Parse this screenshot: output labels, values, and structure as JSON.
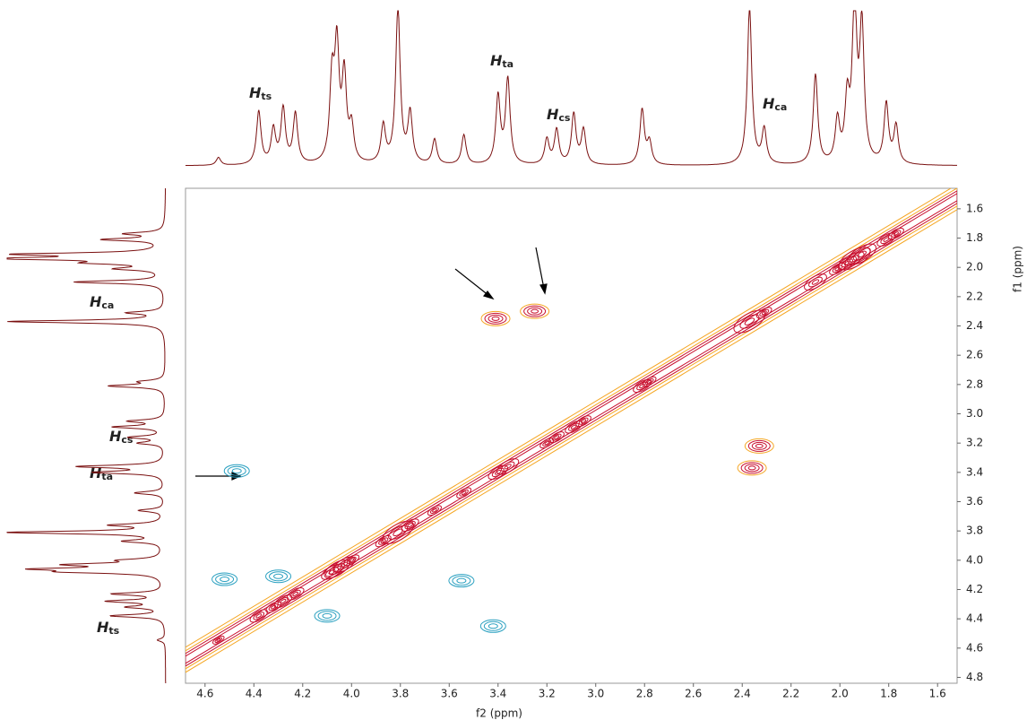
{
  "chart_data": {
    "type": "contour",
    "xlabel": "f2 (ppm)",
    "ylabel": "f1 (ppm)",
    "xlim": [
      4.68,
      1.52
    ],
    "ylim": [
      1.46,
      4.84
    ],
    "xticks": [
      4.6,
      4.4,
      4.2,
      {
        "value": 4,
        "label": "4.0"
      },
      3.8,
      3.6,
      3.4,
      3.2,
      {
        "value": 3,
        "label": "3.0"
      },
      2.8,
      2.6,
      2.4,
      2.2,
      {
        "value": 2,
        "label": "2.0"
      },
      1.8,
      1.6
    ],
    "yticks": [
      1.6,
      1.8,
      {
        "value": 2,
        "label": "2.0"
      },
      2.2,
      2.4,
      2.6,
      2.8,
      {
        "value": 3,
        "label": "3.0"
      },
      3.2,
      3.4,
      3.6,
      3.8,
      {
        "value": 4,
        "label": "4.0"
      },
      4.2,
      4.4,
      4.6,
      4.8
    ],
    "positive_color": "#c8102e",
    "outer_color": "#f5a623",
    "negative_color": "#2aa0c0",
    "trace_color": "#7a1010",
    "projection": {
      "ylim": [
        0,
        100
      ],
      "x": [
        4.545,
        4.38,
        4.32,
        4.28,
        4.23,
        4.08,
        4.06,
        4.03,
        4.0,
        3.87,
        3.81,
        3.76,
        3.66,
        3.54,
        3.4,
        3.36,
        3.2,
        3.16,
        3.09,
        3.05,
        2.81,
        2.78,
        2.37,
        2.31,
        2.1,
        2.01,
        1.97,
        1.94,
        1.91,
        1.81,
        1.77
      ],
      "intensity": [
        5,
        34,
        22,
        35,
        32,
        51,
        70,
        54,
        22,
        24,
        100,
        32,
        16,
        19,
        43,
        54,
        16,
        22,
        32,
        22,
        35,
        14,
        100,
        22,
        57,
        27,
        38,
        100,
        86,
        38,
        24
      ]
    },
    "peaks": [
      {
        "f2": 3.41,
        "f1": 2.35,
        "phase": 1
      },
      {
        "f2": 3.25,
        "f1": 2.3,
        "phase": 1
      },
      {
        "f2": 2.33,
        "f1": 3.22,
        "phase": 1
      },
      {
        "f2": 2.36,
        "f1": 3.37,
        "phase": 1
      },
      {
        "f2": 4.47,
        "f1": 3.39,
        "phase": -1
      },
      {
        "f2": 4.52,
        "f1": 4.13,
        "phase": -1
      },
      {
        "f2": 4.3,
        "f1": 4.11,
        "phase": -1
      },
      {
        "f2": 3.55,
        "f1": 4.14,
        "phase": -1
      },
      {
        "f2": 3.42,
        "f1": 4.45,
        "phase": -1
      },
      {
        "f2": 4.1,
        "f1": 4.38,
        "phase": -1
      }
    ],
    "peak_labels": [
      {
        "symbol": "H",
        "subscript": "ts"
      },
      {
        "symbol": "H",
        "subscript": "ta"
      },
      {
        "symbol": "H",
        "subscript": "cs"
      },
      {
        "symbol": "H",
        "subscript": "ca"
      }
    ]
  }
}
